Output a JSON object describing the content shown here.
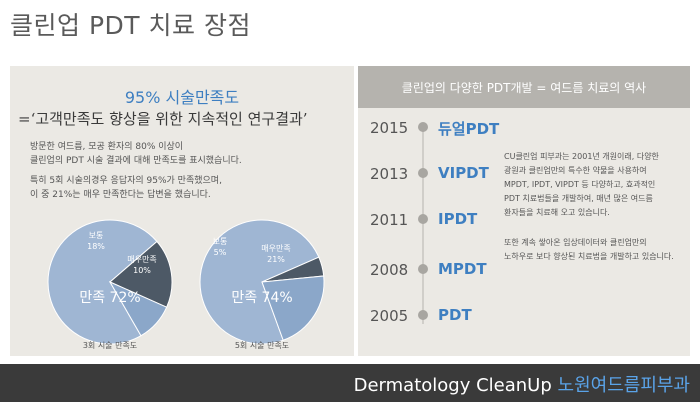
{
  "title": "클린업 PDT 치료 장점",
  "satisfaction": {
    "heading": "95% 시술만족도",
    "study_title": "=‘고객만족도 향상을 위한 지속적인 연구결과’",
    "description": [
      "방문한 여드름, 모공 환자의 80% 이상이",
      "클린업의 PDT 시술 결과에 대해 만족도를 표시했습니다.",
      "특히 5회 시술의경우 응답자의 95%가 만족했으며,",
      "이 중 21%는 매우 만족한다는 답변을 했습니다."
    ],
    "colors": {
      "satisfied": "#9fb6d3",
      "normal": "#4d5966",
      "very_satisfied": "#8ba7c9"
    }
  },
  "chart_data": [
    {
      "type": "pie",
      "title": "3회 시술 만족도",
      "labels": [
        "만족 72%",
        "보통 18%",
        "매우만족 10%"
      ],
      "values": [
        72,
        18,
        10
      ]
    },
    {
      "type": "pie",
      "title": "5회 시술 만족도",
      "labels": [
        "만족 74%",
        "보통 5%",
        "매우만족 21%"
      ],
      "values": [
        74,
        5,
        21
      ]
    }
  ],
  "history": {
    "title": "클린업의 다양한 PDT개발 = 여드름 치료의 역사",
    "timeline": [
      {
        "year": "2015",
        "name": "듀얼PDT"
      },
      {
        "year": "2013",
        "name": "VIPDT"
      },
      {
        "year": "2011",
        "name": "IPDT"
      },
      {
        "year": "2008",
        "name": "MPDT"
      },
      {
        "year": "2005",
        "name": "PDT"
      }
    ],
    "paragraph1": [
      "CU클린업 피부과는 2001년 개원이래, 다양한",
      "광원과 클린업만의 특수한 약물을 사용하여",
      "MPDT, IPDT, VIPDT 등 다양하고, 효과적인",
      "PDT 치료법들을 개발하여, 매년 많은 여드름",
      "환자들을 치료해 오고 있습니다."
    ],
    "paragraph2": [
      "또한 계속 쌓아온 임상데이터와 클린업만의",
      "노하우로 보다 향상된 치료법을 개발하고 있습니다."
    ]
  },
  "footer": {
    "brand_en": "Dermatology CleanUp",
    "brand_kr": "노원여드름피부과"
  }
}
